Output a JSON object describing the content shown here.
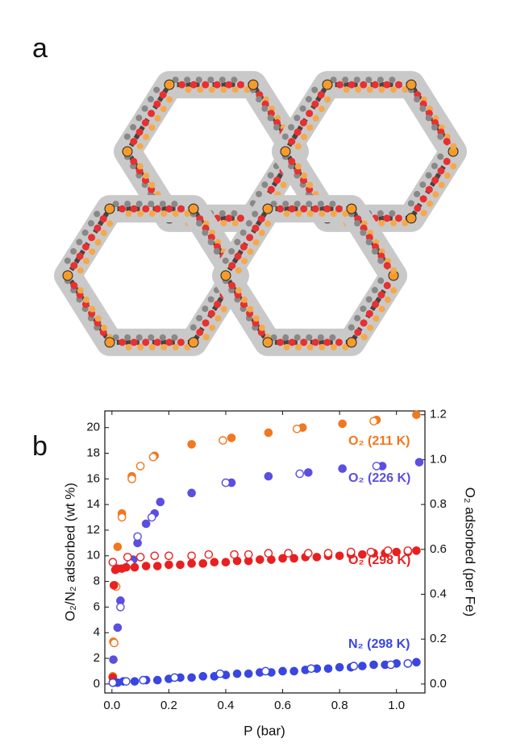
{
  "chart_data": {
    "type": "scatter",
    "panel_labels": [
      "a",
      "b"
    ],
    "x_label": "P (bar)",
    "y_label": "O₂/N₂ adsorbed (wt %)",
    "y2_label": "O₂ adsorbed (per Fe)",
    "xlim": [
      -0.025,
      1.1
    ],
    "xticks": [
      {
        "value": 0,
        "label": "0.0"
      },
      0.2,
      0.4,
      0.6,
      0.8,
      {
        "value": 1,
        "label": "1.0"
      }
    ],
    "ylim": [
      -0.7,
      21.3
    ],
    "yticks": [
      0,
      2,
      4,
      6,
      8,
      10,
      12,
      14,
      16,
      18,
      20
    ],
    "y2lim": [
      -0.04,
      1.217
    ],
    "y2ticks": [
      {
        "value": 0,
        "label": "0.0"
      },
      0.2,
      0.4,
      0.6,
      0.8,
      {
        "value": 1,
        "label": "1.0"
      },
      1.2
    ],
    "series": [
      {
        "name": "O₂ (211 K)",
        "color": "#f07820",
        "marker": "filled",
        "x": [
          0.003,
          0.005,
          0.01,
          0.02,
          0.035,
          0.07,
          0.15,
          0.28,
          0.42,
          0.55,
          0.67,
          0.81,
          0.93,
          1.07
        ],
        "values": [
          0.6,
          3.3,
          7.7,
          10.7,
          13.3,
          16.2,
          17.8,
          18.7,
          19.2,
          19.6,
          20.0,
          20.3,
          20.6,
          21.0
        ]
      },
      {
        "color": "#f07820",
        "marker": "open",
        "x": [
          0.008,
          0.015,
          0.035,
          0.07,
          0.1,
          0.145,
          0.39,
          0.65,
          0.92
        ],
        "values": [
          3.2,
          7.6,
          13.0,
          16.0,
          17.0,
          17.7,
          19.0,
          19.9,
          20.5
        ]
      },
      {
        "name": "O₂ (226 K)",
        "color": "#5a4fe0",
        "marker": "filled",
        "x": [
          0.005,
          0.02,
          0.03,
          0.075,
          0.09,
          0.12,
          0.15,
          0.17,
          0.28,
          0.42,
          0.55,
          0.69,
          0.81,
          0.95,
          1.08
        ],
        "values": [
          1.9,
          4.4,
          6.5,
          9.7,
          11.0,
          12.5,
          13.3,
          14.2,
          14.9,
          15.7,
          16.2,
          16.5,
          16.8,
          17.0,
          17.3
        ]
      },
      {
        "color": "#5a4fe0",
        "marker": "open",
        "x": [
          0.03,
          0.065,
          0.09,
          0.14,
          0.4,
          0.66,
          0.93
        ],
        "values": [
          6.0,
          9.4,
          11.5,
          13.0,
          15.7,
          16.4,
          17.0
        ]
      },
      {
        "name": "O₂ (298 K)",
        "color": "#e82020",
        "marker": "filled",
        "x": [
          0.003,
          0.007,
          0.012,
          0.02,
          0.035,
          0.05,
          0.08,
          0.12,
          0.16,
          0.2,
          0.24,
          0.28,
          0.32,
          0.36,
          0.4,
          0.44,
          0.48,
          0.52,
          0.56,
          0.6,
          0.64,
          0.68,
          0.72,
          0.76,
          0.8,
          0.84,
          0.88,
          0.92,
          0.96,
          1.0,
          1.04,
          1.07
        ],
        "values": [
          0.5,
          7.7,
          8.9,
          9.0,
          9.0,
          9.1,
          9.1,
          9.2,
          9.2,
          9.3,
          9.3,
          9.4,
          9.4,
          9.5,
          9.5,
          9.6,
          9.6,
          9.7,
          9.7,
          9.8,
          9.8,
          9.9,
          9.9,
          10.0,
          10.0,
          10.1,
          10.1,
          10.2,
          10.2,
          10.3,
          10.3,
          10.4
        ]
      },
      {
        "color": "#e82020",
        "marker": "open",
        "x": [
          0.003,
          0.055,
          0.1,
          0.15,
          0.2,
          0.28,
          0.34,
          0.43,
          0.48,
          0.55,
          0.62,
          0.69,
          0.76,
          0.84,
          0.91,
          0.97,
          1.04
        ],
        "values": [
          9.5,
          9.9,
          9.9,
          10.0,
          10.0,
          10.0,
          10.1,
          10.1,
          10.1,
          10.2,
          10.2,
          10.2,
          10.2,
          10.3,
          10.3,
          10.4,
          10.4
        ]
      },
      {
        "name": "N₂ (298 K)",
        "color": "#3a46e0",
        "marker": "filled",
        "x": [
          0.005,
          0.02,
          0.04,
          0.08,
          0.12,
          0.16,
          0.2,
          0.24,
          0.28,
          0.32,
          0.36,
          0.4,
          0.44,
          0.48,
          0.52,
          0.56,
          0.6,
          0.64,
          0.68,
          0.72,
          0.76,
          0.8,
          0.84,
          0.88,
          0.92,
          0.96,
          1.0,
          1.04,
          1.07
        ],
        "values": [
          0.1,
          0.1,
          0.2,
          0.2,
          0.3,
          0.3,
          0.4,
          0.5,
          0.5,
          0.6,
          0.6,
          0.7,
          0.8,
          0.8,
          0.9,
          0.9,
          1.0,
          1.0,
          1.1,
          1.2,
          1.2,
          1.3,
          1.3,
          1.4,
          1.5,
          1.5,
          1.6,
          1.6,
          1.7
        ]
      },
      {
        "color": "#3a46e0",
        "marker": "open",
        "x": [
          0.003,
          0.05,
          0.11,
          0.22,
          0.38,
          0.54,
          0.7,
          0.85,
          0.98,
          1.04
        ],
        "values": [
          0.1,
          0.2,
          0.3,
          0.5,
          0.8,
          1.0,
          1.2,
          1.4,
          1.5,
          1.6
        ]
      }
    ]
  }
}
